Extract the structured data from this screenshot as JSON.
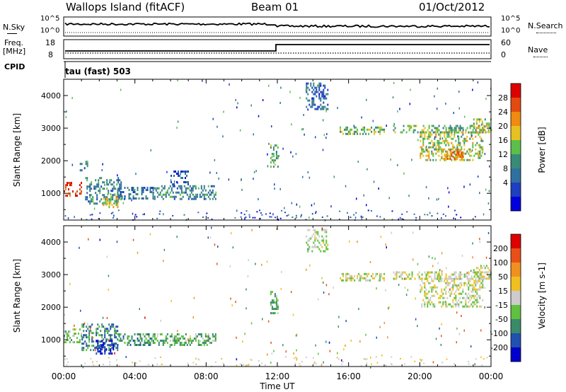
{
  "header": {
    "station": "Wallops Island (fitACF)",
    "beam": "Beam 01",
    "date": "01/Oct/2012"
  },
  "top_panels": {
    "nsky_label": "N.Sky",
    "nsearch_label": "N.Search",
    "noise_ticks": [
      "10^5",
      "10^0"
    ],
    "freq_label_1": "Freq.",
    "freq_label_2": "[MHz]",
    "freq_ticks": [
      "18",
      "8"
    ],
    "nave_label": "Nave",
    "nave_ticks": [
      "60",
      "0"
    ],
    "cpid_label": "CPID",
    "cpid_value": "tau (fast) 503"
  },
  "chart_data": [
    {
      "type": "heatmap",
      "name": "power",
      "ylabel": "Slant Range [km]",
      "xlabel": "Time UT",
      "xlim": [
        0,
        24
      ],
      "ylim": [
        180,
        4500
      ],
      "y_ticks": [
        "1000",
        "2000",
        "3000",
        "4000"
      ],
      "x_ticks": [
        "00:00",
        "04:00",
        "08:00",
        "12:00",
        "16:00",
        "20:00",
        "00:00"
      ],
      "colorbar": {
        "label": "Power [dB]",
        "ticks": [
          "4",
          "8",
          "12",
          "16",
          "20",
          "24",
          "28"
        ],
        "colors": [
          "#0000dd",
          "#1f3fbf",
          "#3070a0",
          "#3a8a78",
          "#5cbf4a",
          "#e6c220",
          "#f08a10",
          "#e24a10",
          "#dd0000"
        ],
        "range": [
          0,
          32
        ]
      },
      "regions": [
        {
          "t0": 0.0,
          "t1": 1.0,
          "r0": 950,
          "r1": 1350,
          "level": 0.92
        },
        {
          "t0": 0.9,
          "t1": 1.3,
          "r0": 1700,
          "r1": 2000,
          "level": 0.35
        },
        {
          "t0": 1.2,
          "t1": 3.2,
          "r0": 700,
          "r1": 1500,
          "level": 0.35
        },
        {
          "t0": 2.2,
          "t1": 3.0,
          "r0": 600,
          "r1": 1000,
          "level": 0.6
        },
        {
          "t0": 3.0,
          "t1": 5.0,
          "r0": 850,
          "r1": 1200,
          "level": 0.3
        },
        {
          "t0": 5.0,
          "t1": 8.5,
          "r0": 850,
          "r1": 1250,
          "level": 0.35
        },
        {
          "t0": 6.0,
          "t1": 7.0,
          "r0": 1300,
          "r1": 1700,
          "level": 0.2
        },
        {
          "t0": 11.6,
          "t1": 12.0,
          "r0": 1800,
          "r1": 2500,
          "level": 0.45
        },
        {
          "t0": 13.6,
          "t1": 14.8,
          "r0": 3600,
          "r1": 4400,
          "level": 0.25
        },
        {
          "t0": 15.5,
          "t1": 18.0,
          "r0": 2850,
          "r1": 3050,
          "level": 0.5
        },
        {
          "t0": 18.5,
          "t1": 24.0,
          "r0": 2850,
          "r1": 3100,
          "level": 0.45
        },
        {
          "t0": 20.0,
          "t1": 23.5,
          "r0": 2000,
          "r1": 2900,
          "level": 0.55
        },
        {
          "t0": 21.2,
          "t1": 22.5,
          "r0": 2050,
          "r1": 2350,
          "level": 0.72
        },
        {
          "t0": 23.0,
          "t1": 24.0,
          "r0": 2900,
          "r1": 3300,
          "level": 0.55
        }
      ]
    },
    {
      "type": "heatmap",
      "name": "velocity",
      "ylabel": "Slant Range [km]",
      "xlabel": "Time UT",
      "xlim": [
        0,
        24
      ],
      "ylim": [
        180,
        4500
      ],
      "y_ticks": [
        "1000",
        "2000",
        "3000",
        "4000"
      ],
      "x_ticks": [
        "00:00",
        "04:00",
        "08:00",
        "12:00",
        "16:00",
        "20:00",
        "00:00"
      ],
      "colorbar": {
        "label": "Velocity [m s-1]",
        "ticks": [
          "200",
          "100",
          "50",
          "15",
          "-15",
          "-50",
          "-100",
          "-200"
        ],
        "colors": [
          "#0000cc",
          "#2050b0",
          "#3a8a6a",
          "#60c040",
          "#cccccc",
          "#f0c020",
          "#f09020",
          "#e85018",
          "#dd0000"
        ],
        "range": [
          -250,
          250
        ]
      },
      "regions": [
        {
          "t0": 0.0,
          "t1": 1.0,
          "r0": 950,
          "r1": 1350,
          "level": 0.45
        },
        {
          "t0": 1.0,
          "t1": 3.0,
          "r0": 700,
          "r1": 1500,
          "level": 0.25
        },
        {
          "t0": 1.8,
          "t1": 2.8,
          "r0": 550,
          "r1": 1000,
          "level": 0.08
        },
        {
          "t0": 3.0,
          "t1": 5.0,
          "r0": 850,
          "r1": 1200,
          "level": 0.3
        },
        {
          "t0": 5.0,
          "t1": 8.5,
          "r0": 850,
          "r1": 1200,
          "level": 0.35
        },
        {
          "t0": 11.6,
          "t1": 12.0,
          "r0": 1800,
          "r1": 2500,
          "level": 0.35
        },
        {
          "t0": 13.6,
          "t1": 14.8,
          "r0": 3700,
          "r1": 4400,
          "level": 0.45
        },
        {
          "t0": 15.5,
          "t1": 18.0,
          "r0": 2850,
          "r1": 3050,
          "level": 0.5
        },
        {
          "t0": 18.5,
          "t1": 24.0,
          "r0": 2850,
          "r1": 3100,
          "level": 0.5
        },
        {
          "t0": 20.0,
          "t1": 23.5,
          "r0": 2000,
          "r1": 2900,
          "level": 0.5
        },
        {
          "t0": 23.0,
          "t1": 24.0,
          "r0": 2900,
          "r1": 3300,
          "level": 0.5
        }
      ]
    }
  ]
}
